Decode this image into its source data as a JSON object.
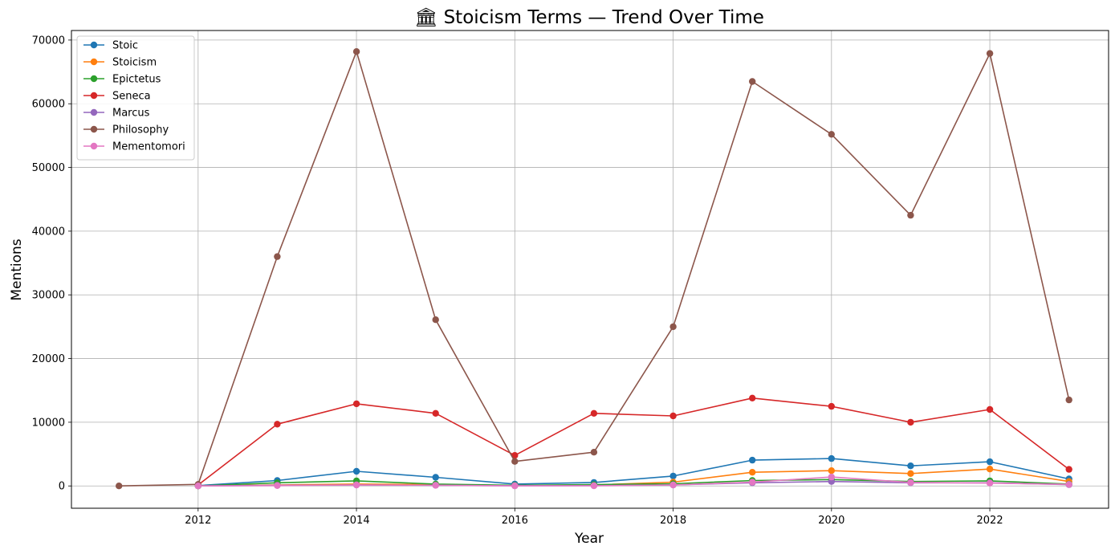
{
  "chart_data": {
    "type": "line",
    "title": "🏛 Stoicism Terms — Trend Over Time",
    "xlabel": "Year",
    "ylabel": "Mentions",
    "xlim": [
      2010.4,
      2023.5
    ],
    "ylim": [
      -3500,
      71500
    ],
    "xticks": [
      2012,
      2014,
      2016,
      2018,
      2020,
      2022
    ],
    "yticks": [
      0,
      10000,
      20000,
      30000,
      40000,
      50000,
      60000,
      70000
    ],
    "grid": true,
    "legend": "top-left",
    "series": [
      {
        "name": "Stoic",
        "color": "#1f77b4",
        "x": [
          2012,
          2013,
          2014,
          2015,
          2016,
          2017,
          2018,
          2019,
          2020,
          2021,
          2022,
          2023
        ],
        "y": [
          50,
          850,
          2300,
          1350,
          300,
          550,
          1550,
          4050,
          4300,
          3150,
          3800,
          1100
        ]
      },
      {
        "name": "Stoicism",
        "color": "#ff7f0e",
        "x": [
          2012,
          2013,
          2014,
          2015,
          2016,
          2017,
          2018,
          2019,
          2020,
          2021,
          2022,
          2023
        ],
        "y": [
          20,
          150,
          300,
          200,
          80,
          150,
          600,
          2150,
          2400,
          1950,
          2650,
          700
        ]
      },
      {
        "name": "Epictetus",
        "color": "#2ca02c",
        "x": [
          2012,
          2013,
          2014,
          2015,
          2016,
          2017,
          2018,
          2019,
          2020,
          2021,
          2022,
          2023
        ],
        "y": [
          10,
          500,
          800,
          300,
          100,
          200,
          350,
          850,
          1000,
          700,
          800,
          300
        ]
      },
      {
        "name": "Seneca",
        "color": "#d62728",
        "x": [
          2012,
          2013,
          2014,
          2015,
          2016,
          2017,
          2018,
          2019,
          2020,
          2021,
          2022,
          2023
        ],
        "y": [
          150,
          9700,
          12900,
          11400,
          4800,
          11400,
          11000,
          13800,
          12500,
          10000,
          12000,
          2600
        ]
      },
      {
        "name": "Marcus",
        "color": "#9467bd",
        "x": [
          2012,
          2013,
          2014,
          2015,
          2016,
          2017,
          2018,
          2019,
          2020,
          2021,
          2022,
          2023
        ],
        "y": [
          20,
          100,
          150,
          100,
          30,
          50,
          150,
          500,
          700,
          500,
          500,
          200
        ]
      },
      {
        "name": "Philosophy",
        "color": "#8c564b",
        "x": [
          2011,
          2012,
          2013,
          2014,
          2015,
          2016,
          2017,
          2018,
          2019,
          2020,
          2021,
          2022,
          2023
        ],
        "y": [
          0,
          250,
          36000,
          68200,
          26100,
          3850,
          5300,
          25000,
          63500,
          55200,
          42500,
          67900,
          13500
        ]
      },
      {
        "name": "Mementomori",
        "color": "#e377c2",
        "x": [
          2012,
          2013,
          2014,
          2015,
          2016,
          2017,
          2018,
          2019,
          2020,
          2021,
          2022,
          2023
        ],
        "y": [
          0,
          50,
          150,
          100,
          20,
          30,
          150,
          600,
          1400,
          550,
          450,
          250
        ]
      }
    ]
  }
}
